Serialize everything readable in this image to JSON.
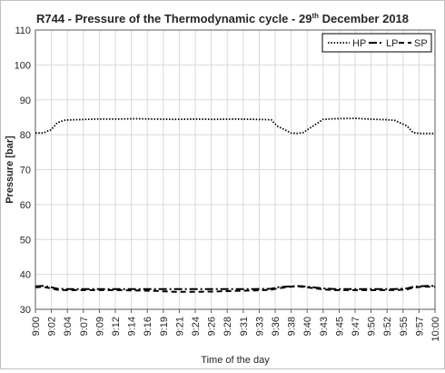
{
  "chart_data": {
    "type": "line",
    "title": {
      "prefix": "R744 - Pressure of the Thermodynamic cycle - 29",
      "superscript": "th",
      "suffix": " December 2018"
    },
    "xlabel": "Time of the day",
    "ylabel": "Pressure [bar]",
    "ylim": [
      30,
      110
    ],
    "yticks": [
      30,
      40,
      50,
      60,
      70,
      80,
      90,
      100,
      110
    ],
    "x_ticklabels": [
      "9:00",
      "9:02",
      "9:04",
      "9:07",
      "9:09",
      "9:12",
      "9:14",
      "9:16",
      "9:19",
      "9:21",
      "9:24",
      "9:26",
      "9:28",
      "9:31",
      "9:33",
      "9:36",
      "9:38",
      "9:40",
      "9:43",
      "9:45",
      "9:47",
      "9:50",
      "9:52",
      "9:55",
      "9:57",
      "10:00"
    ],
    "grid": true,
    "legend_position": "top-right",
    "x_fractions": [
      0,
      0.02,
      0.04,
      0.055,
      0.075,
      0.1,
      0.15,
      0.2,
      0.25,
      0.3,
      0.35,
      0.4,
      0.45,
      0.5,
      0.55,
      0.59,
      0.605,
      0.64,
      0.655,
      0.67,
      0.72,
      0.75,
      0.8,
      0.85,
      0.88,
      0.9,
      0.93,
      0.945,
      0.96,
      0.98,
      1.0
    ],
    "series": [
      {
        "name": "HP",
        "style": "dotted",
        "color": "#000000",
        "values": [
          80.5,
          80.5,
          81.5,
          83.5,
          84.2,
          84.3,
          84.5,
          84.5,
          84.6,
          84.5,
          84.4,
          84.5,
          84.4,
          84.5,
          84.4,
          84.3,
          82.5,
          80.5,
          80.4,
          80.6,
          84.4,
          84.6,
          84.7,
          84.4,
          84.3,
          84.1,
          82.5,
          80.6,
          80.4,
          80.4,
          80.4
        ]
      },
      {
        "name": "LP",
        "style": "long-dash-dot",
        "color": "#000000",
        "values": [
          36.6,
          36.7,
          36.3,
          35.9,
          35.8,
          35.8,
          35.8,
          35.8,
          35.8,
          35.8,
          35.8,
          35.8,
          35.8,
          35.8,
          35.8,
          35.9,
          36.3,
          36.6,
          36.7,
          36.6,
          36.0,
          35.8,
          35.8,
          35.8,
          35.8,
          35.8,
          36.0,
          36.4,
          36.6,
          36.7,
          36.7
        ]
      },
      {
        "name": "SP",
        "style": "dashed",
        "color": "#000000",
        "values": [
          36.3,
          36.4,
          36.0,
          35.6,
          35.5,
          35.5,
          35.5,
          35.5,
          35.4,
          35.3,
          35.0,
          35.0,
          35.1,
          35.3,
          35.4,
          35.6,
          36.0,
          36.5,
          36.6,
          36.4,
          35.7,
          35.5,
          35.5,
          35.5,
          35.5,
          35.5,
          35.7,
          36.2,
          36.4,
          36.5,
          36.5
        ]
      }
    ]
  }
}
